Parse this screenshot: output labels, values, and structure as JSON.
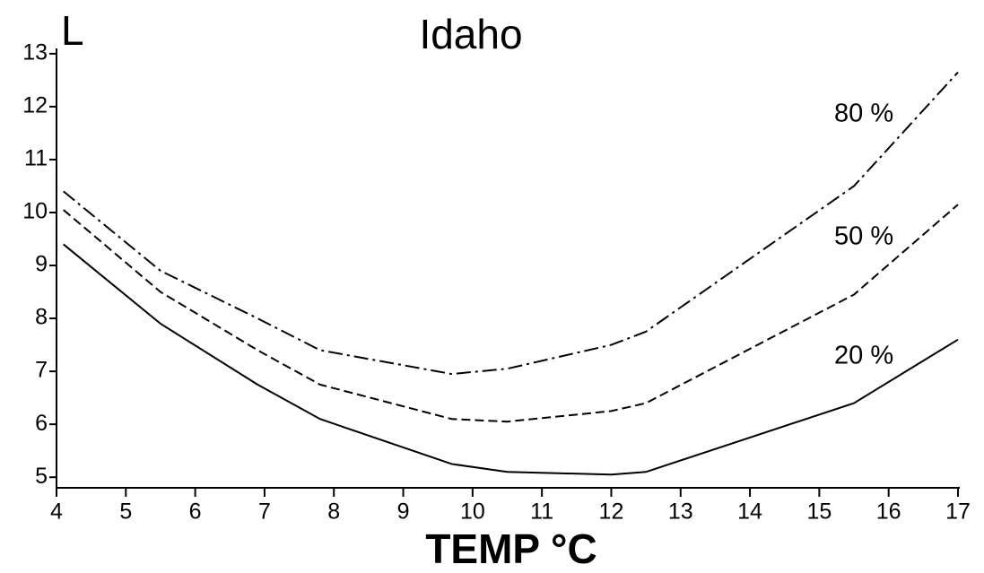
{
  "chart_data": {
    "type": "line",
    "title": "Idaho",
    "y_label": "L",
    "x_label": "TEMP °C",
    "xlim": [
      4,
      17
    ],
    "xticks": [
      4,
      5,
      6,
      7,
      8,
      9,
      10,
      11,
      12,
      13,
      14,
      15,
      16,
      17
    ],
    "ylim": [
      4.8,
      13.1
    ],
    "yticks": [
      5,
      6,
      7,
      8,
      9,
      10,
      11,
      12,
      13
    ],
    "series": [
      {
        "name": "80 %",
        "color": "#000000",
        "style": "dashdot",
        "x": [
          4.1,
          5.5,
          6.9,
          7.8,
          9.7,
          10.5,
          12,
          12.5,
          15.5,
          17
        ],
        "values": [
          10.4,
          8.9,
          8.0,
          7.4,
          6.95,
          7.05,
          7.5,
          7.75,
          10.5,
          12.65
        ]
      },
      {
        "name": "50 %",
        "color": "#000000",
        "style": "dashed",
        "x": [
          4.1,
          5.5,
          6.9,
          7.8,
          9.7,
          10.5,
          12,
          12.5,
          15.5,
          17
        ],
        "values": [
          10.05,
          8.5,
          7.4,
          6.75,
          6.1,
          6.05,
          6.25,
          6.4,
          8.45,
          10.15
        ]
      },
      {
        "name": "20 %",
        "color": "#000000",
        "style": "solid",
        "x": [
          4.1,
          5.5,
          6.9,
          7.8,
          9.7,
          10.5,
          12,
          12.5,
          15.5,
          17
        ],
        "values": [
          9.4,
          7.9,
          6.75,
          6.1,
          5.25,
          5.1,
          5.05,
          5.1,
          6.4,
          7.6
        ]
      }
    ]
  }
}
